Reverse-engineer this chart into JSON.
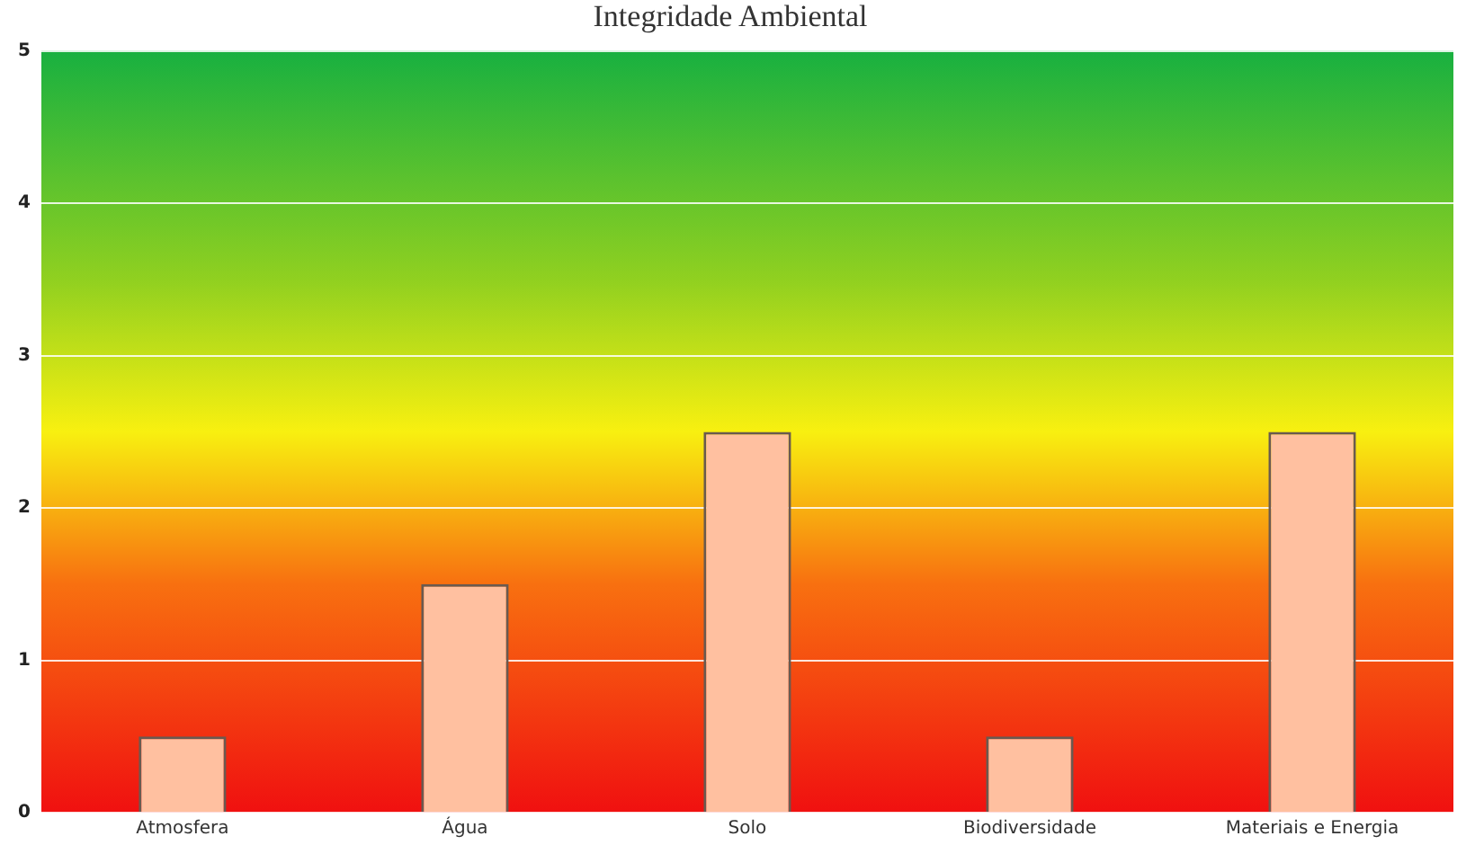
{
  "chart_data": {
    "type": "bar",
    "title": "Integridade Ambiental",
    "categories": [
      "Atmosfera",
      "Água",
      "Solo",
      "Biodiversidade",
      "Materiais e Energia"
    ],
    "values": [
      0.5,
      1.5,
      2.5,
      0.5,
      2.5
    ],
    "color": "#ffc0a0",
    "ylim": [
      0,
      5
    ],
    "yticks": [
      0,
      1,
      2,
      3,
      4,
      5
    ],
    "grid": "y",
    "legend": false
  }
}
